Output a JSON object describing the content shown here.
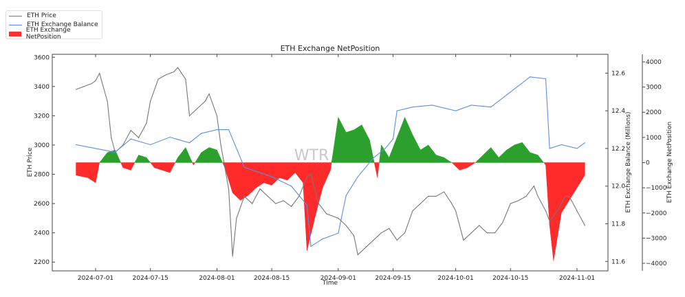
{
  "chart_data": {
    "type": "line",
    "title": "ETH Exchange NetPosition",
    "xlabel": "Time",
    "ylabel_left": "ETH Price",
    "ylabel_right1": "ETH Exchange Balance (Millions)",
    "ylabel_right2": "ETH Exchange NetPosition",
    "watermark": "WTR",
    "legend": [
      "ETH Price",
      "ETH Exchange Balance",
      "ETH Exchange NetPosition"
    ],
    "legend_position": "top-left",
    "colors": {
      "price": "#777777",
      "balance": "#5b8ee6",
      "pos": "#2ca02c",
      "neg": "#ff2a2a"
    },
    "x_ticks": [
      "2024-07-01",
      "2024-07-15",
      "2024-08-01",
      "2024-08-15",
      "2024-09-01",
      "2024-09-15",
      "2024-10-01",
      "2024-10-15",
      "2024-11-01"
    ],
    "price_ticks": [
      "2200",
      "2400",
      "2600",
      "2800",
      "3000",
      "3200",
      "3400",
      "3600"
    ],
    "balance_ticks": [
      "11.6",
      "11.8",
      "12.0",
      "12.2",
      "12.4",
      "12.6"
    ],
    "net_ticks": [
      "-4000",
      "-3000",
      "-2000",
      "-1000",
      "0",
      "1000",
      "2000",
      "3000",
      "4000"
    ],
    "price_ylim": [
      2140,
      3620
    ],
    "balance_ylim": [
      11.55,
      12.7
    ],
    "net_ylim": [
      -4300,
      4300
    ],
    "price": [
      [
        "2024-06-26",
        3380
      ],
      [
        "2024-06-28",
        3400
      ],
      [
        "2024-06-30",
        3420
      ],
      [
        "2024-07-01",
        3440
      ],
      [
        "2024-07-02",
        3490
      ],
      [
        "2024-07-04",
        3300
      ],
      [
        "2024-07-05",
        3050
      ],
      [
        "2024-07-06",
        2950
      ],
      [
        "2024-07-08",
        3000
      ],
      [
        "2024-07-10",
        3100
      ],
      [
        "2024-07-12",
        3050
      ],
      [
        "2024-07-14",
        3150
      ],
      [
        "2024-07-15",
        3300
      ],
      [
        "2024-07-17",
        3450
      ],
      [
        "2024-07-19",
        3480
      ],
      [
        "2024-07-21",
        3500
      ],
      [
        "2024-07-22",
        3530
      ],
      [
        "2024-07-24",
        3450
      ],
      [
        "2024-07-25",
        3200
      ],
      [
        "2024-07-27",
        3250
      ],
      [
        "2024-07-29",
        3300
      ],
      [
        "2024-07-30",
        3350
      ],
      [
        "2024-08-01",
        3200
      ],
      [
        "2024-08-02",
        3000
      ],
      [
        "2024-08-04",
        2700
      ],
      [
        "2024-08-05",
        2240
      ],
      [
        "2024-08-06",
        2500
      ],
      [
        "2024-08-08",
        2650
      ],
      [
        "2024-08-10",
        2600
      ],
      [
        "2024-08-12",
        2700
      ],
      [
        "2024-08-14",
        2650
      ],
      [
        "2024-08-16",
        2600
      ],
      [
        "2024-08-18",
        2620
      ],
      [
        "2024-08-20",
        2580
      ],
      [
        "2024-08-22",
        2650
      ],
      [
        "2024-08-24",
        2780
      ],
      [
        "2024-08-25",
        2800
      ],
      [
        "2024-08-27",
        2600
      ],
      [
        "2024-08-29",
        2530
      ],
      [
        "2024-09-01",
        2500
      ],
      [
        "2024-09-03",
        2450
      ],
      [
        "2024-09-05",
        2380
      ],
      [
        "2024-09-06",
        2250
      ],
      [
        "2024-09-08",
        2300
      ],
      [
        "2024-09-10",
        2350
      ],
      [
        "2024-09-12",
        2400
      ],
      [
        "2024-09-14",
        2430
      ],
      [
        "2024-09-16",
        2350
      ],
      [
        "2024-09-18",
        2400
      ],
      [
        "2024-09-20",
        2550
      ],
      [
        "2024-09-22",
        2600
      ],
      [
        "2024-09-24",
        2650
      ],
      [
        "2024-09-26",
        2650
      ],
      [
        "2024-09-28",
        2680
      ],
      [
        "2024-09-30",
        2600
      ],
      [
        "2024-10-01",
        2550
      ],
      [
        "2024-10-03",
        2350
      ],
      [
        "2024-10-05",
        2400
      ],
      [
        "2024-10-07",
        2450
      ],
      [
        "2024-10-09",
        2400
      ],
      [
        "2024-10-11",
        2400
      ],
      [
        "2024-10-13",
        2470
      ],
      [
        "2024-10-15",
        2600
      ],
      [
        "2024-10-17",
        2620
      ],
      [
        "2024-10-19",
        2650
      ],
      [
        "2024-10-21",
        2720
      ],
      [
        "2024-10-22",
        2650
      ],
      [
        "2024-10-24",
        2550
      ],
      [
        "2024-10-25",
        2480
      ],
      [
        "2024-10-27",
        2550
      ],
      [
        "2024-10-29",
        2650
      ],
      [
        "2024-10-30",
        2650
      ],
      [
        "2024-11-01",
        2550
      ],
      [
        "2024-11-03",
        2450
      ]
    ],
    "balance": [
      [
        "2024-06-26",
        12.22
      ],
      [
        "2024-07-01",
        12.2
      ],
      [
        "2024-07-06",
        12.18
      ],
      [
        "2024-07-10",
        12.25
      ],
      [
        "2024-07-15",
        12.22
      ],
      [
        "2024-07-20",
        12.26
      ],
      [
        "2024-07-25",
        12.23
      ],
      [
        "2024-07-28",
        12.28
      ],
      [
        "2024-08-01",
        12.3
      ],
      [
        "2024-08-04",
        12.3
      ],
      [
        "2024-08-06",
        12.2
      ],
      [
        "2024-08-08",
        12.1
      ],
      [
        "2024-08-15",
        12.05
      ],
      [
        "2024-08-20",
        12.0
      ],
      [
        "2024-08-24",
        11.9
      ],
      [
        "2024-08-25",
        11.68
      ],
      [
        "2024-08-28",
        11.72
      ],
      [
        "2024-09-01",
        11.75
      ],
      [
        "2024-09-03",
        11.95
      ],
      [
        "2024-09-06",
        12.05
      ],
      [
        "2024-09-10",
        12.15
      ],
      [
        "2024-09-13",
        12.2
      ],
      [
        "2024-09-15",
        12.25
      ],
      [
        "2024-09-16",
        12.4
      ],
      [
        "2024-09-20",
        12.42
      ],
      [
        "2024-09-25",
        12.43
      ],
      [
        "2024-10-01",
        12.4
      ],
      [
        "2024-10-05",
        12.43
      ],
      [
        "2024-10-10",
        12.42
      ],
      [
        "2024-10-15",
        12.5
      ],
      [
        "2024-10-20",
        12.58
      ],
      [
        "2024-10-24",
        12.57
      ],
      [
        "2024-10-25",
        12.2
      ],
      [
        "2024-10-28",
        12.22
      ],
      [
        "2024-11-01",
        12.2
      ],
      [
        "2024-11-03",
        12.23
      ]
    ],
    "netposition": [
      [
        "2024-06-26",
        -500
      ],
      [
        "2024-06-29",
        -600
      ],
      [
        "2024-07-01",
        -800
      ],
      [
        "2024-07-02",
        0
      ],
      [
        "2024-07-04",
        400
      ],
      [
        "2024-07-06",
        500
      ],
      [
        "2024-07-08",
        -200
      ],
      [
        "2024-07-10",
        -300
      ],
      [
        "2024-07-12",
        300
      ],
      [
        "2024-07-14",
        200
      ],
      [
        "2024-07-16",
        -200
      ],
      [
        "2024-07-18",
        -300
      ],
      [
        "2024-07-20",
        -400
      ],
      [
        "2024-07-22",
        200
      ],
      [
        "2024-07-24",
        600
      ],
      [
        "2024-07-26",
        -100
      ],
      [
        "2024-07-28",
        400
      ],
      [
        "2024-07-30",
        600
      ],
      [
        "2024-08-01",
        500
      ],
      [
        "2024-08-03",
        -200
      ],
      [
        "2024-08-05",
        -1200
      ],
      [
        "2024-08-07",
        -1500
      ],
      [
        "2024-08-09",
        -1300
      ],
      [
        "2024-08-11",
        -1000
      ],
      [
        "2024-08-13",
        -800
      ],
      [
        "2024-08-15",
        -900
      ],
      [
        "2024-08-17",
        -600
      ],
      [
        "2024-08-19",
        -700
      ],
      [
        "2024-08-21",
        -400
      ],
      [
        "2024-08-23",
        -800
      ],
      [
        "2024-08-24",
        -3500
      ],
      [
        "2024-08-26",
        -2200
      ],
      [
        "2024-08-28",
        -1000
      ],
      [
        "2024-08-30",
        -300
      ],
      [
        "2024-09-01",
        1800
      ],
      [
        "2024-09-03",
        1200
      ],
      [
        "2024-09-05",
        1300
      ],
      [
        "2024-09-07",
        1500
      ],
      [
        "2024-09-09",
        900
      ],
      [
        "2024-09-11",
        -600
      ],
      [
        "2024-09-12",
        700
      ],
      [
        "2024-09-14",
        200
      ],
      [
        "2024-09-16",
        1000
      ],
      [
        "2024-09-18",
        1800
      ],
      [
        "2024-09-20",
        1100
      ],
      [
        "2024-09-22",
        500
      ],
      [
        "2024-09-24",
        700
      ],
      [
        "2024-09-26",
        300
      ],
      [
        "2024-09-28",
        200
      ],
      [
        "2024-09-30",
        0
      ],
      [
        "2024-10-02",
        -300
      ],
      [
        "2024-10-04",
        -200
      ],
      [
        "2024-10-06",
        0
      ],
      [
        "2024-10-08",
        300
      ],
      [
        "2024-10-10",
        600
      ],
      [
        "2024-10-12",
        200
      ],
      [
        "2024-10-14",
        500
      ],
      [
        "2024-10-16",
        700
      ],
      [
        "2024-10-18",
        800
      ],
      [
        "2024-10-20",
        400
      ],
      [
        "2024-10-22",
        300
      ],
      [
        "2024-10-24",
        -100
      ],
      [
        "2024-10-25",
        -2500
      ],
      [
        "2024-10-26",
        -3900
      ],
      [
        "2024-10-28",
        -2000
      ],
      [
        "2024-10-30",
        -1500
      ],
      [
        "2024-11-01",
        -1000
      ],
      [
        "2024-11-03",
        -500
      ]
    ]
  }
}
